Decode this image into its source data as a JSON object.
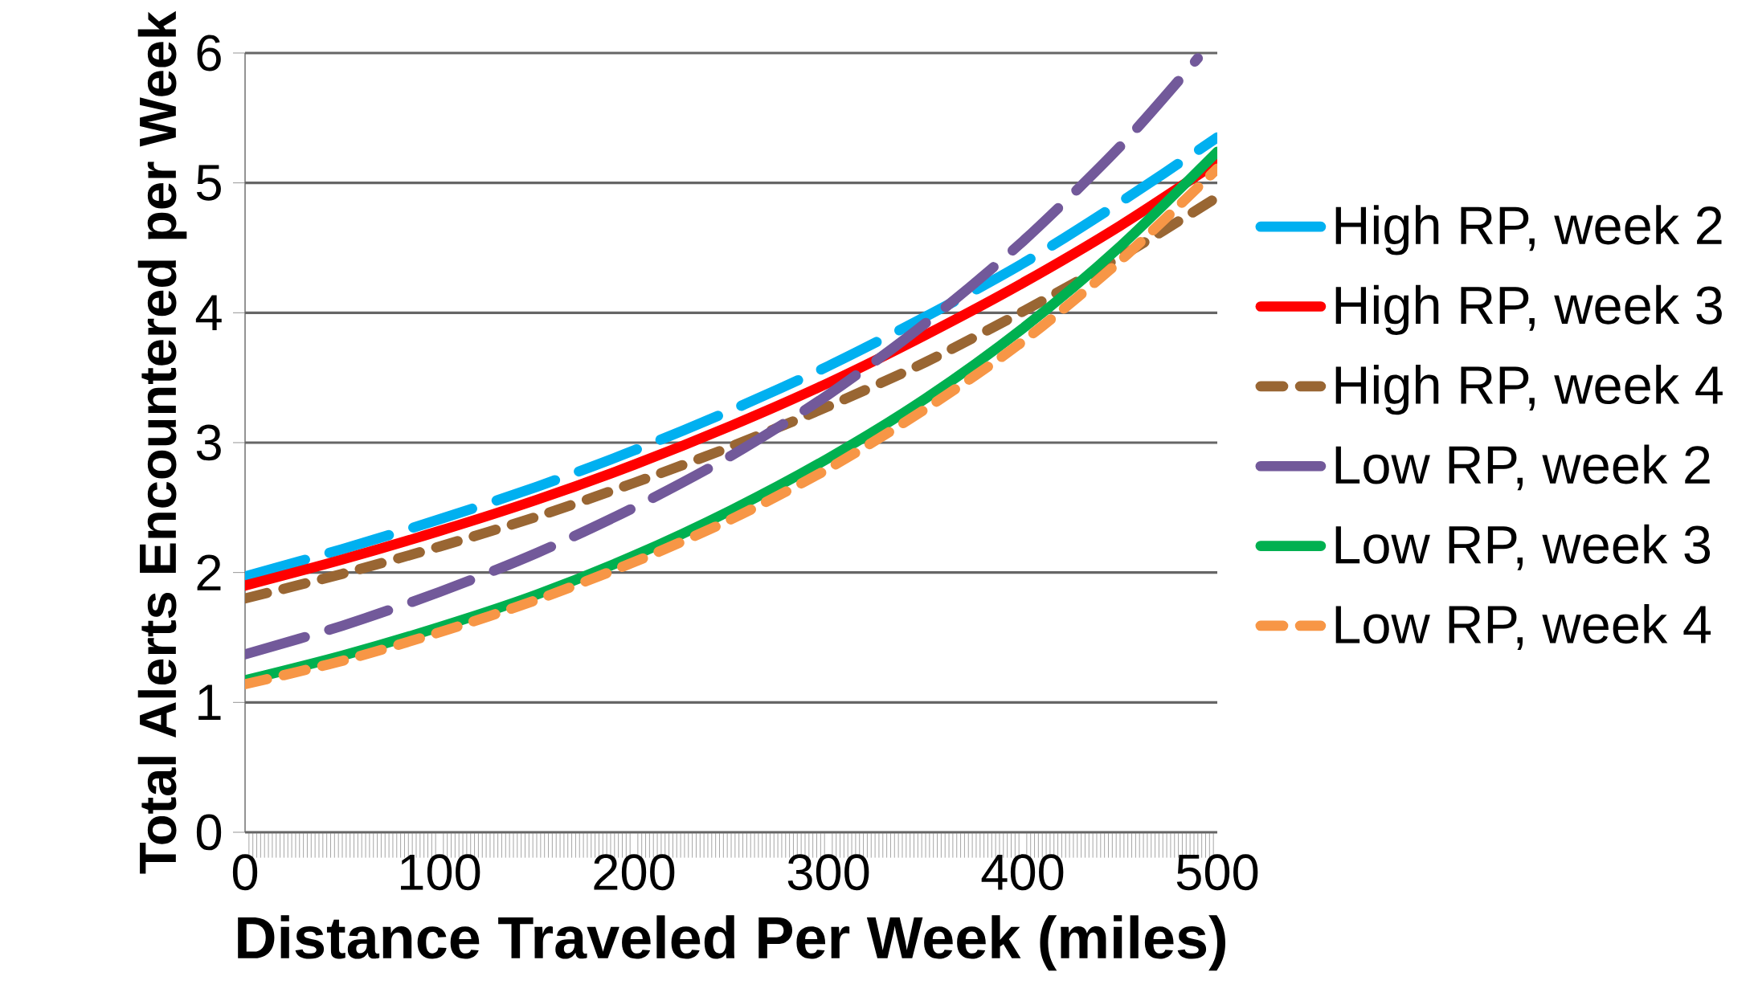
{
  "chart_data": {
    "type": "line",
    "xlabel": "Distance Traveled Per Week (miles)",
    "ylabel": "Total Alerts Encountered per Week",
    "x": [
      0,
      50,
      100,
      150,
      200,
      250,
      300,
      350,
      400,
      450,
      500
    ],
    "xlim": [
      0,
      500
    ],
    "xticks": [
      0,
      100,
      200,
      300,
      400,
      500
    ],
    "ylim": [
      0,
      6
    ],
    "yticks": [
      0,
      1,
      2,
      3,
      4,
      5,
      6
    ],
    "grid": "y",
    "legend": "right",
    "series": [
      {
        "name": "High RP, week 2",
        "color": "#00b0f0",
        "line_style": "dashed",
        "values": [
          1.97,
          2.18,
          2.41,
          2.66,
          2.94,
          3.25,
          3.59,
          3.97,
          4.38,
          4.85,
          5.35
        ]
      },
      {
        "name": "High RP, week 3",
        "color": "#ff0000",
        "line_style": "solid",
        "values": [
          1.9,
          2.1,
          2.32,
          2.56,
          2.83,
          3.13,
          3.46,
          3.83,
          4.23,
          4.67,
          5.16
        ]
      },
      {
        "name": "High RP, week 4",
        "color": "#996633",
        "line_style": "dotted",
        "values": [
          1.8,
          1.99,
          2.2,
          2.43,
          2.69,
          2.97,
          3.28,
          3.62,
          4.01,
          4.43,
          4.89
        ]
      },
      {
        "name": "Low RP, week 2",
        "color": "#72599a",
        "line_style": "dashed",
        "x": [
          0,
          50,
          100,
          150,
          200,
          250,
          300,
          350,
          400,
          450,
          490
        ],
        "values": [
          1.37,
          1.59,
          1.85,
          2.15,
          2.5,
          2.9,
          3.37,
          3.92,
          4.55,
          5.28,
          5.96
        ]
      },
      {
        "name": "Low RP, week 3",
        "color": "#00b050",
        "line_style": "solid",
        "values": [
          1.17,
          1.36,
          1.58,
          1.83,
          2.13,
          2.48,
          2.88,
          3.34,
          3.88,
          4.51,
          5.24
        ]
      },
      {
        "name": "Low RP, week 4",
        "color": "#f79646",
        "line_style": "dotted",
        "values": [
          1.14,
          1.32,
          1.54,
          1.79,
          2.08,
          2.41,
          2.8,
          3.26,
          3.78,
          4.4,
          5.11
        ]
      }
    ]
  }
}
